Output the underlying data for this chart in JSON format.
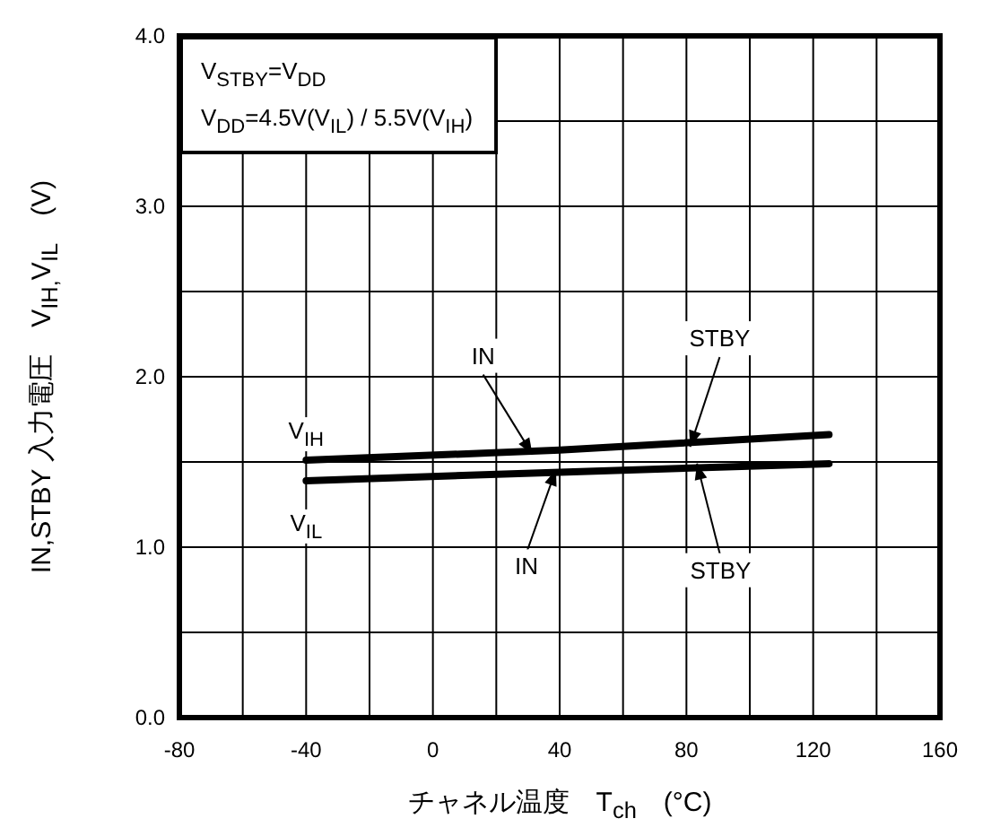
{
  "chart_data": {
    "type": "line",
    "xlabel": "チャネル温度　T$_{ch}$　(°C)",
    "ylabel": "IN,STBY 入力電圧　V$_{IH,}$V$_{IL}$　(V)",
    "xlim": [
      -80,
      160
    ],
    "ylim": [
      0,
      4
    ],
    "xticks": [
      -80,
      {
        "value": -60,
        "label": null
      },
      -40,
      {
        "value": -20,
        "label": null
      },
      0,
      {
        "value": 20,
        "label": null
      },
      40,
      {
        "value": 60,
        "label": null
      },
      80,
      {
        "value": 100,
        "label": null
      },
      120,
      {
        "value": 140,
        "label": null
      },
      160
    ],
    "yticks": [
      {
        "value": 0,
        "label": "0.0"
      },
      {
        "value": 0.5,
        "label": null
      },
      {
        "value": 1,
        "label": "1.0"
      },
      {
        "value": 1.5,
        "label": null
      },
      {
        "value": 2,
        "label": "2.0"
      },
      {
        "value": 2.5,
        "label": null
      },
      {
        "value": 3,
        "label": "3.0"
      },
      {
        "value": 3.5,
        "label": null
      },
      {
        "value": 4,
        "label": "4.0"
      }
    ],
    "grid": true,
    "marker": "none",
    "line_style": "solid",
    "series": [
      {
        "name": "V$_{IH}$",
        "color": "#000000",
        "x": [
          -40,
          40,
          125
        ],
        "values": [
          1.51,
          1.57,
          1.66
        ]
      },
      {
        "name": "V$_{IL}$",
        "color": "#000000",
        "x": [
          -40,
          40,
          125
        ],
        "values": [
          1.39,
          1.44,
          1.49
        ]
      }
    ],
    "annotations": [
      "V$_{STBY}$=V$_{DD}$",
      "V$_{DD}$=4.5V(V$_{IL}$) / 5.5V(V$_{IH}$)",
      {
        "text": "IN",
        "x": 30,
        "y": 1.56
      },
      {
        "text": "STBY",
        "x": 82,
        "y": 1.61
      },
      {
        "text": "IN",
        "x": 38,
        "y": 1.44
      },
      {
        "text": "STBY",
        "x": 84,
        "y": 1.47
      }
    ]
  }
}
